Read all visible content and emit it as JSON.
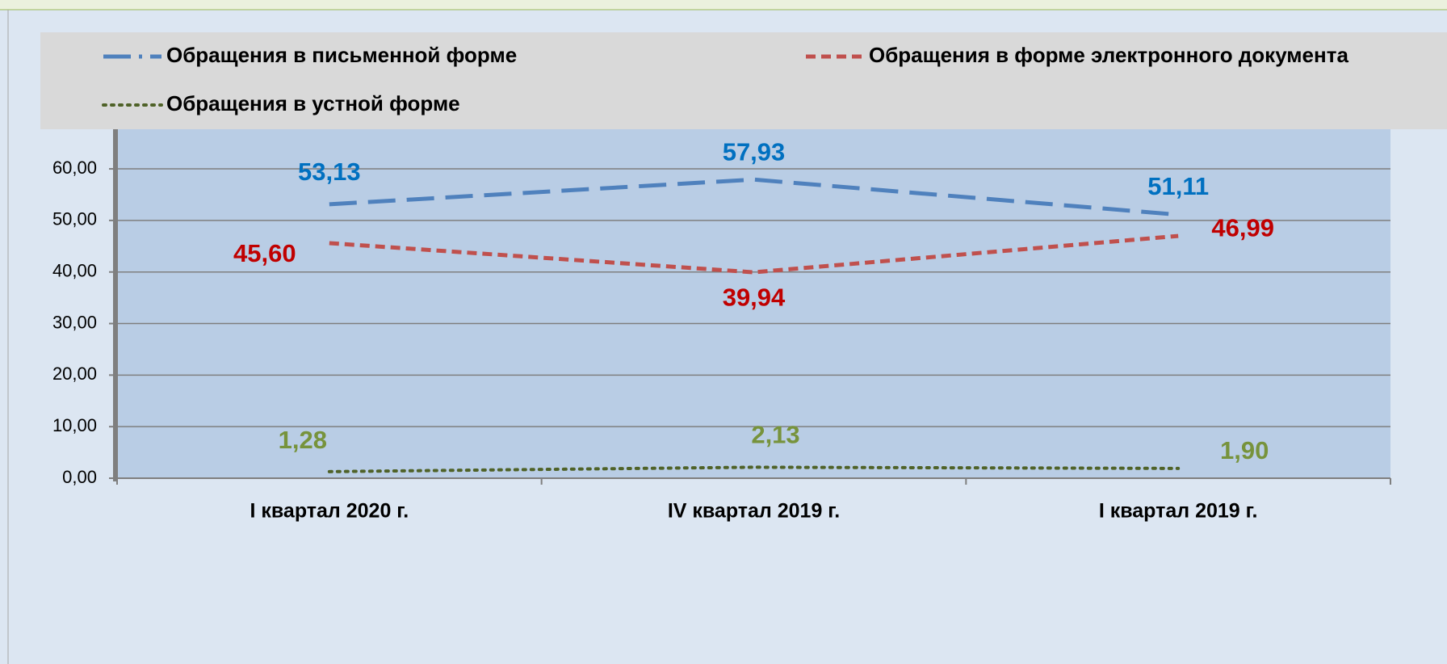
{
  "chart_data": {
    "type": "line",
    "categories": [
      "I квартал 2020 г.",
      "IV квартал 2019 г.",
      "I квартал 2019 г."
    ],
    "series": [
      {
        "name": "Обращения в письменной форме",
        "color": "#4f81bd",
        "values": [
          53.13,
          57.93,
          51.11
        ],
        "value_labels": [
          "53,13",
          "57,93",
          "51,11"
        ],
        "label_color": "#0070c0"
      },
      {
        "name": "Обращения в форме электронного документа",
        "color": "#c0504d",
        "values": [
          45.6,
          39.94,
          46.99
        ],
        "value_labels": [
          "45,60",
          "39,94",
          "46,99"
        ],
        "label_color": "#c00000"
      },
      {
        "name": "Обращения в устной форме",
        "color": "#4f6228",
        "values": [
          1.28,
          2.13,
          1.9
        ],
        "value_labels": [
          "1,28",
          "2,13",
          "1,90"
        ],
        "label_color": "#77933c"
      }
    ],
    "ylim": [
      0,
      68
    ],
    "yticks": [
      {
        "value": 0,
        "label": "0,00"
      },
      {
        "value": 10,
        "label": "10,00"
      },
      {
        "value": 20,
        "label": "20,00"
      },
      {
        "value": 30,
        "label": "30,00"
      },
      {
        "value": 40,
        "label": "40,00"
      },
      {
        "value": 50,
        "label": "50,00"
      },
      {
        "value": 60,
        "label": "60,00"
      }
    ],
    "grid": true,
    "legend": "top"
  }
}
